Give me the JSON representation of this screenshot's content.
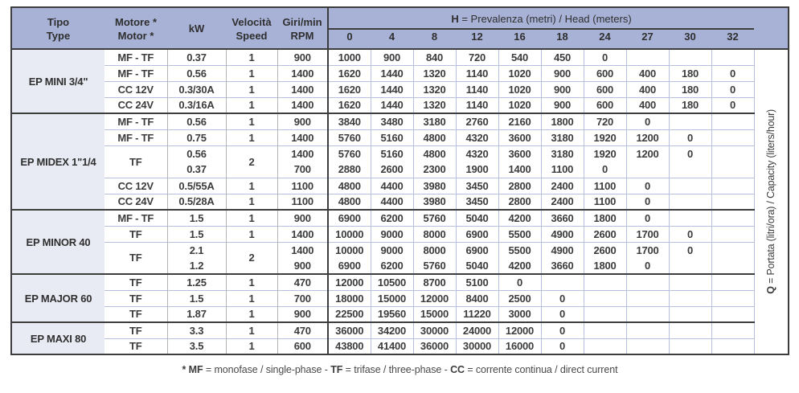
{
  "columns": {
    "tipo_line1": "Tipo",
    "tipo_line2": "Type",
    "motor_line1": "Motore *",
    "motor_line2": "Motor *",
    "kw": "kW",
    "speed_line1": "Velocità",
    "speed_line2": "Speed",
    "rpm_line1": "Giri/min",
    "rpm_line2": "RPM"
  },
  "head_group": {
    "prefix": "H",
    "rest": " = Prevalenza (metri) / Head (meters)"
  },
  "head_values": [
    "0",
    "4",
    "8",
    "12",
    "16",
    "18",
    "24",
    "27",
    "30",
    "32"
  ],
  "q_axis": {
    "prefix": "Q",
    "rest": " = Portata (litri/ora) / Capacity (liters/hour)"
  },
  "sections": [
    {
      "name": "EP MINI 3/4\"",
      "rows": [
        {
          "motor": "MF - TF",
          "kw": "0.37",
          "speed": "1",
          "rpm": "900",
          "q": [
            "1000",
            "900",
            "840",
            "720",
            "540",
            "450",
            "0",
            "",
            "",
            ""
          ]
        },
        {
          "motor": "MF - TF",
          "kw": "0.56",
          "speed": "1",
          "rpm": "1400",
          "q": [
            "1620",
            "1440",
            "1320",
            "1140",
            "1020",
            "900",
            "600",
            "400",
            "180",
            "0"
          ]
        },
        {
          "motor": "CC 12V",
          "kw": "0.3/30A",
          "speed": "1",
          "rpm": "1400",
          "q": [
            "1620",
            "1440",
            "1320",
            "1140",
            "1020",
            "900",
            "600",
            "400",
            "180",
            "0"
          ]
        },
        {
          "motor": "CC 24V",
          "kw": "0.3/16A",
          "speed": "1",
          "rpm": "1400",
          "q": [
            "1620",
            "1440",
            "1320",
            "1140",
            "1020",
            "900",
            "600",
            "400",
            "180",
            "0"
          ]
        }
      ]
    },
    {
      "name": "EP MIDEX 1\"1/4",
      "rows": [
        {
          "motor": "MF - TF",
          "kw": "0.56",
          "speed": "1",
          "rpm": "900",
          "q": [
            "3840",
            "3480",
            "3180",
            "2760",
            "2160",
            "1800",
            "720",
            "0",
            "",
            ""
          ]
        },
        {
          "motor": "MF - TF",
          "kw": "0.75",
          "speed": "1",
          "rpm": "1400",
          "q": [
            "5760",
            "5160",
            "4800",
            "4320",
            "3600",
            "3180",
            "1920",
            "1200",
            "0",
            ""
          ]
        },
        {
          "motor": "TF",
          "double": true,
          "speed": "2",
          "kw": [
            "0.56",
            "0.37"
          ],
          "rpm": [
            "1400",
            "700"
          ],
          "q": [
            [
              "5760",
              "5160",
              "4800",
              "4320",
              "3600",
              "3180",
              "1920",
              "1200",
              "0",
              ""
            ],
            [
              "2880",
              "2600",
              "2300",
              "1900",
              "1400",
              "1100",
              "0",
              "",
              "",
              ""
            ]
          ]
        },
        {
          "motor": "CC 12V",
          "kw": "0.5/55A",
          "speed": "1",
          "rpm": "1100",
          "q": [
            "4800",
            "4400",
            "3980",
            "3450",
            "2800",
            "2400",
            "1100",
            "0",
            "",
            ""
          ]
        },
        {
          "motor": "CC 24V",
          "kw": "0.5/28A",
          "speed": "1",
          "rpm": "1100",
          "q": [
            "4800",
            "4400",
            "3980",
            "3450",
            "2800",
            "2400",
            "1100",
            "0",
            "",
            ""
          ]
        }
      ]
    },
    {
      "name": "EP MINOR 40",
      "rows": [
        {
          "motor": "MF - TF",
          "kw": "1.5",
          "speed": "1",
          "rpm": "900",
          "q": [
            "6900",
            "6200",
            "5760",
            "5040",
            "4200",
            "3660",
            "1800",
            "0",
            "",
            ""
          ]
        },
        {
          "motor": "TF",
          "kw": "1.5",
          "speed": "1",
          "rpm": "1400",
          "q": [
            "10000",
            "9000",
            "8000",
            "6900",
            "5500",
            "4900",
            "2600",
            "1700",
            "0",
            ""
          ]
        },
        {
          "motor": "TF",
          "double": true,
          "speed": "2",
          "kw": [
            "2.1",
            "1.2"
          ],
          "rpm": [
            "1400",
            "900"
          ],
          "q": [
            [
              "10000",
              "9000",
              "8000",
              "6900",
              "5500",
              "4900",
              "2600",
              "1700",
              "0",
              ""
            ],
            [
              "6900",
              "6200",
              "5760",
              "5040",
              "4200",
              "3660",
              "1800",
              "0",
              "",
              ""
            ]
          ]
        }
      ]
    },
    {
      "name": "EP MAJOR 60",
      "rows": [
        {
          "motor": "TF",
          "kw": "1.25",
          "speed": "1",
          "rpm": "470",
          "q": [
            "12000",
            "10500",
            "8700",
            "5100",
            "0",
            "",
            "",
            "",
            "",
            ""
          ]
        },
        {
          "motor": "TF",
          "kw": "1.5",
          "speed": "1",
          "rpm": "700",
          "q": [
            "18000",
            "15000",
            "12000",
            "8400",
            "2500",
            "0",
            "",
            "",
            "",
            ""
          ]
        },
        {
          "motor": "TF",
          "kw": "1.87",
          "speed": "1",
          "rpm": "900",
          "q": [
            "22500",
            "19560",
            "15000",
            "11220",
            "3000",
            "0",
            "",
            "",
            "",
            ""
          ]
        }
      ]
    },
    {
      "name": "EP MAXI 80",
      "rows": [
        {
          "motor": "TF",
          "kw": "3.3",
          "speed": "1",
          "rpm": "470",
          "q": [
            "36000",
            "34200",
            "30000",
            "24000",
            "12000",
            "0",
            "",
            "",
            "",
            ""
          ]
        },
        {
          "motor": "TF",
          "kw": "3.5",
          "speed": "1",
          "rpm": "600",
          "q": [
            "43800",
            "41400",
            "36000",
            "30000",
            "16000",
            "0",
            "",
            "",
            "",
            ""
          ]
        }
      ]
    }
  ],
  "footnote": {
    "mf_label": "* MF",
    "mf_text": " = monofase / single-phase - ",
    "tf_label": "TF",
    "tf_text": " = trifase / three-phase - ",
    "cc_label": "CC",
    "cc_text": " = corrente continua / direct current"
  },
  "colors": {
    "header_background": "#a8b2d6",
    "type_column_background": "#e9ebf4",
    "row_divider": "#b7c1df",
    "section_border": "#3d3d3d"
  }
}
